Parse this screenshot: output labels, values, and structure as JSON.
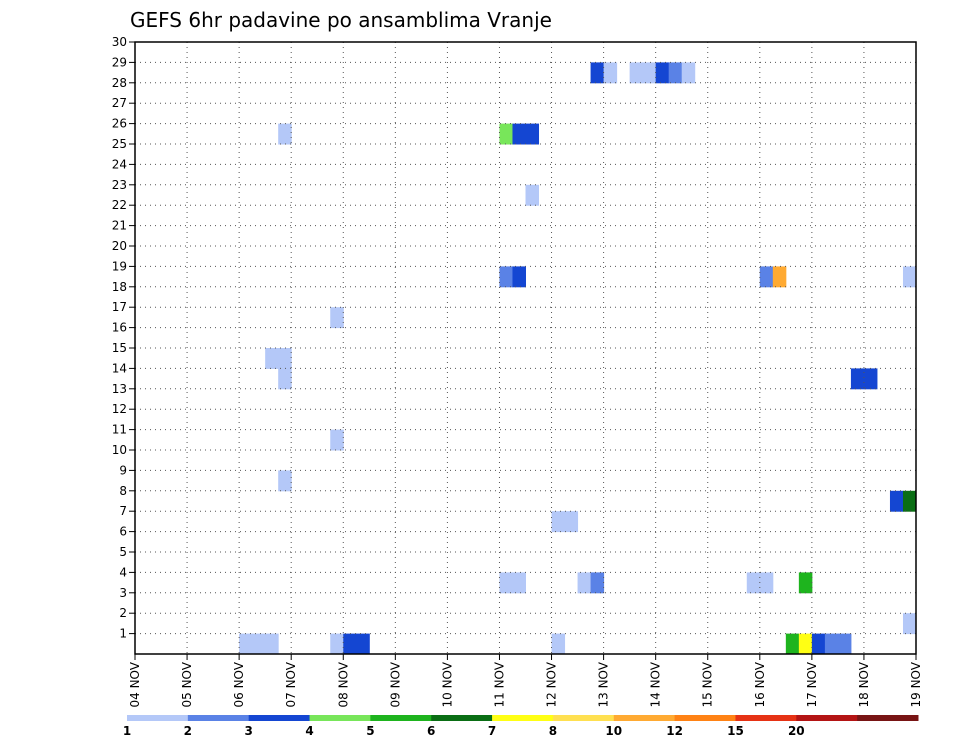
{
  "chart_data": {
    "type": "heatmap",
    "title": "GEFS 6hr padavine po ansamblima Vranje",
    "x_tick_labels": [
      "04 NOV",
      "05 NOV",
      "06 NOV",
      "07 NOV",
      "08 NOV",
      "09 NOV",
      "10 NOV",
      "11 NOV",
      "12 NOV",
      "13 NOV",
      "14 NOV",
      "15 NOV",
      "16 NOV",
      "17 NOV",
      "18 NOV",
      "19 NOV"
    ],
    "y_tick_labels": [
      "1",
      "2",
      "3",
      "4",
      "5",
      "6",
      "7",
      "8",
      "9",
      "10",
      "11",
      "12",
      "13",
      "14",
      "15",
      "16",
      "17",
      "18",
      "19",
      "20",
      "21",
      "22",
      "23",
      "24",
      "25",
      "26",
      "27",
      "28",
      "29",
      "30"
    ],
    "x_unit": "day",
    "x_range": [
      0,
      15
    ],
    "y_range": [
      0,
      30
    ],
    "grid": true,
    "colorbar": {
      "levels": [
        "1",
        "2",
        "3",
        "4",
        "5",
        "6",
        "7",
        "8",
        "10",
        "12",
        "15",
        "20"
      ],
      "colors": [
        "#b4c8f8",
        "#5a82e6",
        "#1446d2",
        "#78e65a",
        "#1eb41e",
        "#0a6e14",
        "#ffff14",
        "#ffe050",
        "#ffaa32",
        "#ff8214",
        "#e63214",
        "#b41414",
        "#781414"
      ]
    },
    "cells": [
      {
        "day": 8.75,
        "member": 29,
        "v": 3
      },
      {
        "day": 9.0,
        "member": 29,
        "v": 1
      },
      {
        "day": 9.5,
        "member": 29,
        "v": 1
      },
      {
        "day": 9.75,
        "member": 29,
        "v": 1
      },
      {
        "day": 10.0,
        "member": 29,
        "v": 3
      },
      {
        "day": 10.25,
        "member": 29,
        "v": 2
      },
      {
        "day": 10.5,
        "member": 29,
        "v": 1
      },
      {
        "day": 2.75,
        "member": 26,
        "v": 1
      },
      {
        "day": 7.0,
        "member": 26,
        "v": 4
      },
      {
        "day": 7.25,
        "member": 26,
        "v": 3
      },
      {
        "day": 7.5,
        "member": 26,
        "v": 3
      },
      {
        "day": 7.5,
        "member": 23,
        "v": 1
      },
      {
        "day": 7.0,
        "member": 19,
        "v": 2
      },
      {
        "day": 7.25,
        "member": 19,
        "v": 3
      },
      {
        "day": 12.0,
        "member": 19,
        "v": 2
      },
      {
        "day": 12.25,
        "member": 19,
        "v": 10
      },
      {
        "day": 14.75,
        "member": 19,
        "v": 1
      },
      {
        "day": 3.75,
        "member": 17,
        "v": 1
      },
      {
        "day": 2.5,
        "member": 15,
        "v": 1
      },
      {
        "day": 2.75,
        "member": 15,
        "v": 1
      },
      {
        "day": 2.75,
        "member": 14,
        "v": 1
      },
      {
        "day": 13.75,
        "member": 14,
        "v": 3
      },
      {
        "day": 14.0,
        "member": 14,
        "v": 3
      },
      {
        "day": 3.75,
        "member": 11,
        "v": 1
      },
      {
        "day": 2.75,
        "member": 9,
        "v": 1
      },
      {
        "day": 14.5,
        "member": 8,
        "v": 3
      },
      {
        "day": 14.75,
        "member": 8,
        "v": 6
      },
      {
        "day": 8.0,
        "member": 7,
        "v": 1
      },
      {
        "day": 8.25,
        "member": 7,
        "v": 1
      },
      {
        "day": 7.0,
        "member": 4,
        "v": 1
      },
      {
        "day": 7.25,
        "member": 4,
        "v": 1
      },
      {
        "day": 8.5,
        "member": 4,
        "v": 1
      },
      {
        "day": 8.75,
        "member": 4,
        "v": 2
      },
      {
        "day": 11.75,
        "member": 4,
        "v": 1
      },
      {
        "day": 12.0,
        "member": 4,
        "v": 1
      },
      {
        "day": 12.75,
        "member": 4,
        "v": 5
      },
      {
        "day": 14.75,
        "member": 2,
        "v": 1
      },
      {
        "day": 2.0,
        "member": 1,
        "v": 1
      },
      {
        "day": 2.25,
        "member": 1,
        "v": 1
      },
      {
        "day": 2.5,
        "member": 1,
        "v": 1
      },
      {
        "day": 3.75,
        "member": 1,
        "v": 1
      },
      {
        "day": 4.0,
        "member": 1,
        "v": 3
      },
      {
        "day": 4.25,
        "member": 1,
        "v": 3
      },
      {
        "day": 8.0,
        "member": 1,
        "v": 1
      },
      {
        "day": 12.5,
        "member": 1,
        "v": 5
      },
      {
        "day": 12.75,
        "member": 1,
        "v": 7
      },
      {
        "day": 13.0,
        "member": 1,
        "v": 3
      },
      {
        "day": 13.25,
        "member": 1,
        "v": 2
      },
      {
        "day": 13.5,
        "member": 1,
        "v": 2
      }
    ]
  }
}
